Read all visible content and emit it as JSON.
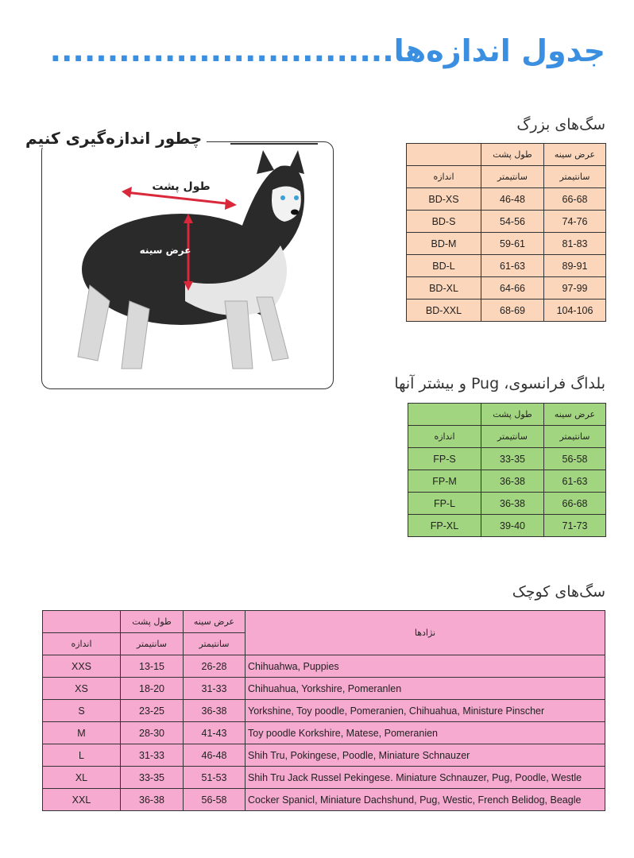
{
  "title": "جدول اندازه‌ها",
  "title_dots": "..............................",
  "colors": {
    "title": "#3b8fe0",
    "large_dogs": "#fbd6bb",
    "pug": "#a2d57f",
    "small_dogs": "#f6aad0"
  },
  "how_to": {
    "title": "چطور اندازه‌گیری کنیم",
    "back_label": "طول پشت",
    "chest_label": "عرض سینه"
  },
  "large_dogs": {
    "title": "سگ‌های بزرگ",
    "header": {
      "chest": "عرض سینه",
      "back": "طول پشت",
      "unit": "سانتیمتر",
      "size": "اندازه"
    },
    "rows": [
      {
        "size": "BD-XS",
        "back": "46-48",
        "chest": "66-68"
      },
      {
        "size": "BD-S",
        "back": "54-56",
        "chest": "74-76"
      },
      {
        "size": "BD-M",
        "back": "59-61",
        "chest": "81-83"
      },
      {
        "size": "BD-L",
        "back": "61-63",
        "chest": "89-91"
      },
      {
        "size": "BD-XL",
        "back": "64-66",
        "chest": "97-99"
      },
      {
        "size": "BD-XXL",
        "back": "68-69",
        "chest": "104-106"
      }
    ]
  },
  "pug": {
    "title": "بلداگ فرانسوی، Pug و بیشتر آنها",
    "header": {
      "chest": "عرض سینه",
      "back": "طول پشت",
      "unit": "سانتیمتر",
      "size": "اندازه"
    },
    "rows": [
      {
        "size": "FP-S",
        "back": "33-35",
        "chest": "56-58"
      },
      {
        "size": "FP-M",
        "back": "36-38",
        "chest": "61-63"
      },
      {
        "size": "FP-L",
        "back": "36-38",
        "chest": "66-68"
      },
      {
        "size": "FP-XL",
        "back": "39-40",
        "chest": "71-73"
      }
    ]
  },
  "small_dogs": {
    "title": "سگ‌های کوچک",
    "header": {
      "breeds": "نژادها",
      "chest": "عرض سینه",
      "back": "طول پشت",
      "unit": "سانتیمتر",
      "size": "اندازه"
    },
    "rows": [
      {
        "size": "XXS",
        "back": "13-15",
        "chest": "26-28",
        "breeds": "Chihuahwa, Puppies"
      },
      {
        "size": "XS",
        "back": "18-20",
        "chest": "31-33",
        "breeds": "Chihuahua, Yorkshire, Pomeranlen"
      },
      {
        "size": "S",
        "back": "23-25",
        "chest": "36-38",
        "breeds": "Yorkshine, Toy poodle, Pomeranien, Chihuahua, Ministure Pinscher"
      },
      {
        "size": "M",
        "back": "28-30",
        "chest": "41-43",
        "breeds": "Toy poodle Korkshire, Matese, Pomeranien"
      },
      {
        "size": "L",
        "back": "31-33",
        "chest": "46-48",
        "breeds": "Shih Tru, Pokingese, Poodle, Miniature Schnauzer"
      },
      {
        "size": "XL",
        "back": "33-35",
        "chest": "51-53",
        "breeds": "Shih Tru Jack Russel Pekingese. Miniature Schnauzer, Pug, Poodle, Westle"
      },
      {
        "size": "XXL",
        "back": "36-38",
        "chest": "56-58",
        "breeds": "Cocker Spanicl, Miniature Dachshund, Pug, Westic, French Belidog, Beagle"
      }
    ]
  }
}
